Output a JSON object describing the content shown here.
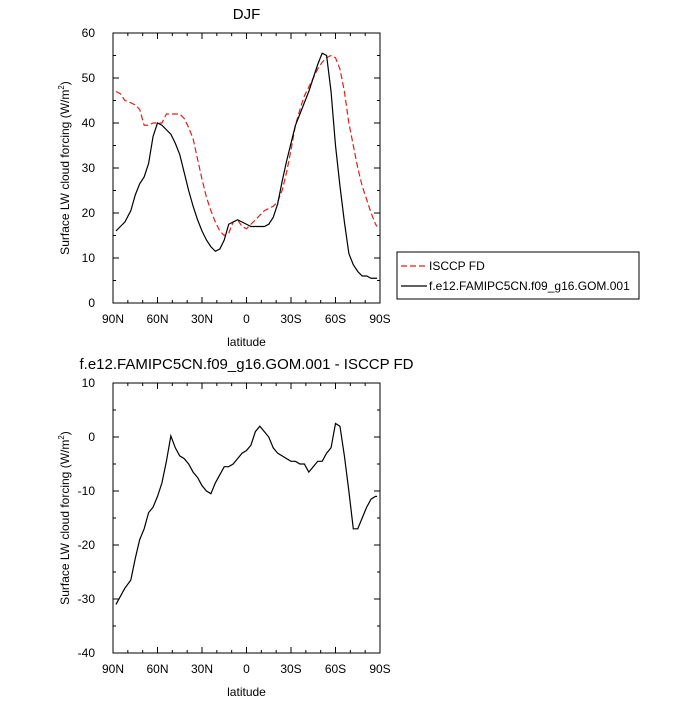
{
  "chart_data": [
    {
      "type": "line",
      "title": "DJF",
      "xlabel": "latitude",
      "ylabel": "Surface LW cloud forcing (W/m²)",
      "ylabel_main": "Surface LW cloud forcing (W/m",
      "ylabel_sup": "2",
      "ylabel_end": ")",
      "xlim": [
        90,
        -90
      ],
      "ylim": [
        0,
        60
      ],
      "x_ticks": [
        90,
        60,
        30,
        0,
        -30,
        -60,
        -90
      ],
      "x_tick_labels": [
        "90N",
        "60N",
        "30N",
        "0",
        "30S",
        "60S",
        "90S"
      ],
      "y_ticks": [
        0,
        10,
        20,
        30,
        40,
        50,
        60
      ],
      "y_tick_labels": [
        "0",
        "10",
        "20",
        "30",
        "40",
        "50",
        "60"
      ],
      "grid": false,
      "legend_position": "right",
      "series": [
        {
          "name": "ISCCP FD",
          "color": "#e0201a",
          "dash": "dashed",
          "x": [
            88,
            85,
            82,
            78,
            75,
            72,
            69,
            66,
            63,
            60,
            57,
            54,
            51,
            48,
            45,
            42,
            39,
            36,
            33,
            30,
            27,
            24,
            21,
            18,
            15,
            12,
            9,
            6,
            3,
            0,
            -3,
            -6,
            -9,
            -12,
            -15,
            -18,
            -21,
            -24,
            -27,
            -30,
            -33,
            -36,
            -39,
            -42,
            -45,
            -48,
            -51,
            -54,
            -57,
            -60,
            -63,
            -66,
            -69,
            -72,
            -75,
            -78,
            -81,
            -84,
            -87,
            -88
          ],
          "values": [
            47,
            46.5,
            45,
            44.5,
            44,
            43,
            39.5,
            39.5,
            40,
            40,
            40,
            42,
            42,
            42,
            42,
            41,
            39,
            36.5,
            32,
            27.5,
            23.5,
            20.5,
            18,
            16,
            15,
            15.5,
            18,
            18.5,
            17,
            16.5,
            17.5,
            18.5,
            19.5,
            20.5,
            21,
            21.5,
            22.5,
            25,
            29,
            34,
            39.5,
            43,
            46,
            48,
            50,
            52,
            53.5,
            54.5,
            55,
            54.5,
            52,
            47,
            40,
            35,
            30,
            26,
            23,
            20,
            17.5,
            17
          ]
        },
        {
          "name": "f.e12.FAMIPC5CN.f09_g16.GOM.001",
          "color": "#000000",
          "dash": "solid",
          "x": [
            88,
            85,
            82,
            78,
            75,
            72,
            69,
            66,
            63,
            60,
            57,
            54,
            51,
            48,
            45,
            42,
            39,
            36,
            33,
            30,
            27,
            24,
            21,
            18,
            15,
            12,
            9,
            6,
            3,
            0,
            -3,
            -6,
            -9,
            -12,
            -15,
            -18,
            -21,
            -24,
            -27,
            -30,
            -33,
            -36,
            -39,
            -42,
            -45,
            -48,
            -51,
            -54,
            -57,
            -60,
            -63,
            -66,
            -69,
            -72,
            -75,
            -78,
            -81,
            -84,
            -87,
            -88
          ],
          "values": [
            16,
            17,
            18,
            20.5,
            24,
            26.5,
            28,
            31,
            37,
            40,
            39.5,
            38.5,
            37.5,
            35.5,
            33,
            29,
            25,
            21.5,
            18.5,
            16,
            14,
            12.5,
            11.5,
            12,
            14,
            17.5,
            18,
            18.5,
            18,
            17.5,
            17,
            17,
            17,
            17,
            17.5,
            19,
            22,
            27,
            31.5,
            35.5,
            39.5,
            42,
            44.5,
            47,
            50,
            53,
            55.5,
            55,
            47,
            35,
            26,
            18,
            11,
            8.5,
            7,
            6,
            6,
            5.5,
            5.5,
            5.5
          ]
        }
      ]
    },
    {
      "type": "line",
      "title": "f.e12.FAMIPC5CN.f09_g16.GOM.001 - ISCCP FD",
      "xlabel": "latitude",
      "ylabel": "Surface LW cloud forcing (W/m²)",
      "ylabel_main": "Surface LW cloud forcing (W/m",
      "ylabel_sup": "2",
      "ylabel_end": ")",
      "xlim": [
        90,
        -90
      ],
      "ylim": [
        -40,
        10
      ],
      "x_ticks": [
        90,
        60,
        30,
        0,
        -30,
        -60,
        -90
      ],
      "x_tick_labels": [
        "90N",
        "60N",
        "30N",
        "0",
        "30S",
        "60S",
        "90S"
      ],
      "y_ticks": [
        -40,
        -30,
        -20,
        -10,
        0,
        10
      ],
      "y_tick_labels": [
        "-40",
        "-30",
        "-20",
        "-10",
        "0",
        "10"
      ],
      "grid": false,
      "series": [
        {
          "color": "#000000",
          "dash": "solid",
          "x": [
            88,
            85,
            82,
            78,
            75,
            72,
            69,
            66,
            63,
            60,
            57,
            54,
            51,
            48,
            45,
            42,
            39,
            36,
            33,
            30,
            27,
            24,
            21,
            18,
            15,
            12,
            9,
            6,
            3,
            0,
            -3,
            -6,
            -9,
            -12,
            -15,
            -18,
            -21,
            -24,
            -27,
            -30,
            -33,
            -36,
            -39,
            -42,
            -45,
            -48,
            -51,
            -54,
            -57,
            -60,
            -63,
            -66,
            -69,
            -72,
            -75,
            -78,
            -81,
            -84,
            -87,
            -88
          ],
          "values": [
            -31,
            -29.5,
            -28,
            -26.5,
            -22.5,
            -19,
            -17,
            -14,
            -13,
            -11,
            -8.5,
            -4.5,
            0.2,
            -2,
            -3.5,
            -4,
            -5,
            -6.5,
            -7.5,
            -9,
            -10,
            -10.5,
            -8.5,
            -7,
            -5.5,
            -5.5,
            -5,
            -4,
            -3,
            -2.5,
            -1.5,
            1,
            2,
            1,
            0,
            -2,
            -3,
            -3.5,
            -4,
            -4.5,
            -4.5,
            -5,
            -5,
            -6.5,
            -5.5,
            -4.5,
            -4.5,
            -3,
            -2,
            2.5,
            2,
            -3.5,
            -10,
            -17,
            -17,
            -15,
            -13,
            -11.5,
            -11,
            -11
          ]
        }
      ]
    }
  ]
}
